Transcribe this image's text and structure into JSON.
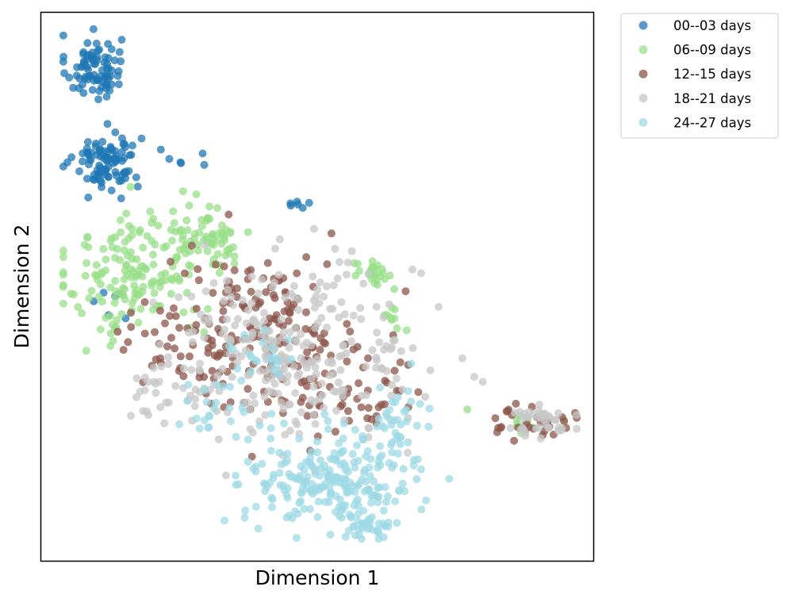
{
  "chart_data": {
    "type": "scatter",
    "title": "",
    "xlabel": "Dimension 1",
    "ylabel": "Dimension 2",
    "xlim": [
      0,
      100
    ],
    "ylim": [
      0,
      100
    ],
    "grid": false,
    "ticks_visible": false,
    "legend_position": "outside-top-right",
    "series": [
      {
        "name": "00--03 days",
        "color": "#1f77b4",
        "clusters": [
          {
            "cx": 9.5,
            "cy": 90.0,
            "sx": 2.5,
            "sy": 3.0,
            "n": 85
          },
          {
            "cx": 12.0,
            "cy": 73.0,
            "sx": 3.0,
            "sy": 2.6,
            "n": 95
          },
          {
            "cx": 26.0,
            "cy": 73.0,
            "sx": 2.5,
            "sy": 1.0,
            "n": 5
          },
          {
            "cx": 46.5,
            "cy": 65.0,
            "sx": 1.2,
            "sy": 0.6,
            "n": 6
          },
          {
            "cx": 12.0,
            "cy": 48.0,
            "sx": 3.0,
            "sy": 4.0,
            "n": 6
          }
        ]
      },
      {
        "name": "06--09 days",
        "color": "#98df8a",
        "clusters": [
          {
            "cx": 17.0,
            "cy": 52.0,
            "sx": 6.0,
            "sy": 6.0,
            "n": 150
          },
          {
            "cx": 30.0,
            "cy": 59.0,
            "sx": 4.0,
            "sy": 3.0,
            "n": 70
          },
          {
            "cx": 60.0,
            "cy": 52.0,
            "sx": 1.8,
            "sy": 1.2,
            "n": 25
          },
          {
            "cx": 64.0,
            "cy": 45.0,
            "sx": 2.0,
            "sy": 2.5,
            "n": 10
          },
          {
            "cx": 88.0,
            "cy": 26.0,
            "sx": 4.0,
            "sy": 1.5,
            "n": 10
          }
        ]
      },
      {
        "name": "12--15 days",
        "color": "#8c564b",
        "clusters": [
          {
            "cx": 40.0,
            "cy": 42.0,
            "sx": 9.0,
            "sy": 7.0,
            "n": 180
          },
          {
            "cx": 22.0,
            "cy": 38.0,
            "sx": 4.0,
            "sy": 4.0,
            "n": 25
          },
          {
            "cx": 58.0,
            "cy": 30.0,
            "sx": 6.0,
            "sy": 4.0,
            "n": 40
          },
          {
            "cx": 89.0,
            "cy": 25.5,
            "sx": 3.5,
            "sy": 2.0,
            "n": 30
          }
        ]
      },
      {
        "name": "18--21 days",
        "color": "#c7c7c7",
        "clusters": [
          {
            "cx": 45.0,
            "cy": 38.0,
            "sx": 12.0,
            "sy": 8.0,
            "n": 280
          },
          {
            "cx": 90.0,
            "cy": 25.0,
            "sx": 3.5,
            "sy": 1.8,
            "n": 40
          },
          {
            "cx": 25.0,
            "cy": 31.0,
            "sx": 4.0,
            "sy": 2.0,
            "n": 20
          }
        ]
      },
      {
        "name": "24--27 days",
        "color": "#9edae5",
        "clusters": [
          {
            "cx": 53.0,
            "cy": 15.0,
            "sx": 8.0,
            "sy": 4.5,
            "n": 240
          },
          {
            "cx": 59.0,
            "cy": 6.0,
            "sx": 2.0,
            "sy": 1.0,
            "n": 30
          },
          {
            "cx": 65.0,
            "cy": 26.0,
            "sx": 3.0,
            "sy": 3.0,
            "n": 30
          },
          {
            "cx": 40.0,
            "cy": 36.0,
            "sx": 3.0,
            "sy": 3.0,
            "n": 25
          },
          {
            "cx": 30.0,
            "cy": 28.0,
            "sx": 5.0,
            "sy": 2.5,
            "n": 20
          }
        ]
      }
    ]
  }
}
